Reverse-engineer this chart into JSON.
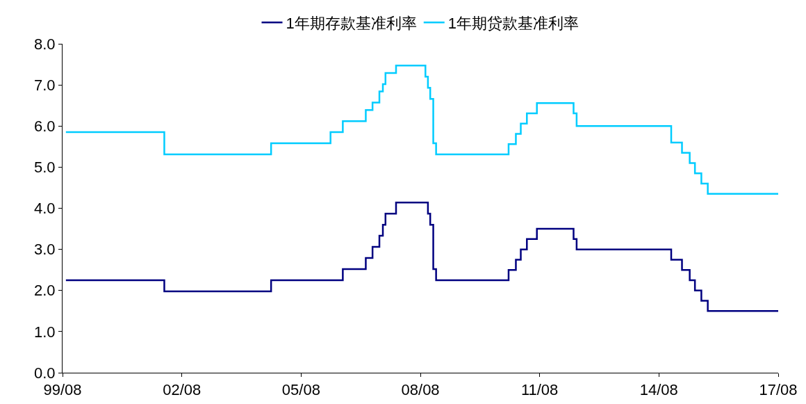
{
  "chart_data": {
    "type": "step",
    "legend": "top",
    "grid": false,
    "line_style": "solid",
    "marker": "none",
    "xlim": [
      "1999-08-01",
      "2017-08-01"
    ],
    "xticks": [
      {
        "value": "1999-08-01",
        "label": "99/08"
      },
      {
        "value": "2002-08-01",
        "label": "02/08"
      },
      {
        "value": "2005-08-01",
        "label": "05/08"
      },
      {
        "value": "2008-08-01",
        "label": "08/08"
      },
      {
        "value": "2011-08-01",
        "label": "11/08"
      },
      {
        "value": "2014-08-01",
        "label": "14/08"
      },
      {
        "value": "2017-08-01",
        "label": "17/08"
      }
    ],
    "ylim": [
      0,
      8
    ],
    "yticks": [
      {
        "value": 0,
        "label": "0.0"
      },
      {
        "value": 1,
        "label": "1.0"
      },
      {
        "value": 2,
        "label": "2.0"
      },
      {
        "value": 3,
        "label": "3.0"
      },
      {
        "value": 4,
        "label": "4.0"
      },
      {
        "value": 5,
        "label": "5.0"
      },
      {
        "value": 6,
        "label": "6.0"
      },
      {
        "value": 7,
        "label": "7.0"
      },
      {
        "value": 8,
        "label": "8.0"
      }
    ],
    "series": [
      {
        "name": "1年期存款基准利率",
        "color": "#000080",
        "x": [
          "1999-09-01",
          "2002-02-21",
          "2004-10-29",
          "2006-08-19",
          "2007-03-18",
          "2007-05-19",
          "2007-07-21",
          "2007-08-22",
          "2007-09-15",
          "2007-12-21",
          "2008-10-09",
          "2008-10-30",
          "2008-11-27",
          "2008-12-23",
          "2010-10-20",
          "2010-12-26",
          "2011-02-09",
          "2011-04-06",
          "2011-07-07",
          "2012-06-08",
          "2012-07-06",
          "2014-11-22",
          "2015-03-01",
          "2015-05-11",
          "2015-06-28",
          "2015-08-26",
          "2015-10-24",
          "2017-08-01"
        ],
        "values": [
          2.25,
          1.98,
          2.25,
          2.52,
          2.79,
          3.06,
          3.33,
          3.6,
          3.87,
          4.14,
          3.87,
          3.6,
          2.52,
          2.25,
          2.5,
          2.75,
          3.0,
          3.25,
          3.5,
          3.25,
          3.0,
          2.75,
          2.5,
          2.25,
          2.0,
          1.75,
          1.5,
          1.5
        ]
      },
      {
        "name": "1年期贷款基准利率",
        "color": "#00ccff",
        "x": [
          "1999-09-01",
          "2002-02-21",
          "2004-10-29",
          "2006-04-28",
          "2006-08-19",
          "2007-03-18",
          "2007-05-19",
          "2007-07-21",
          "2007-08-22",
          "2007-09-15",
          "2007-12-21",
          "2008-09-16",
          "2008-10-09",
          "2008-10-30",
          "2008-11-27",
          "2008-12-23",
          "2010-10-20",
          "2010-12-26",
          "2011-02-09",
          "2011-04-06",
          "2011-07-07",
          "2012-06-08",
          "2012-07-06",
          "2014-11-22",
          "2015-03-01",
          "2015-05-11",
          "2015-06-28",
          "2015-08-26",
          "2015-10-24",
          "2017-08-01"
        ],
        "values": [
          5.85,
          5.31,
          5.58,
          5.85,
          6.12,
          6.39,
          6.57,
          6.84,
          7.02,
          7.29,
          7.47,
          7.2,
          6.93,
          6.66,
          5.58,
          5.31,
          5.56,
          5.81,
          6.06,
          6.31,
          6.56,
          6.31,
          6.0,
          5.6,
          5.35,
          5.1,
          4.85,
          4.6,
          4.35,
          4.35
        ]
      }
    ]
  }
}
